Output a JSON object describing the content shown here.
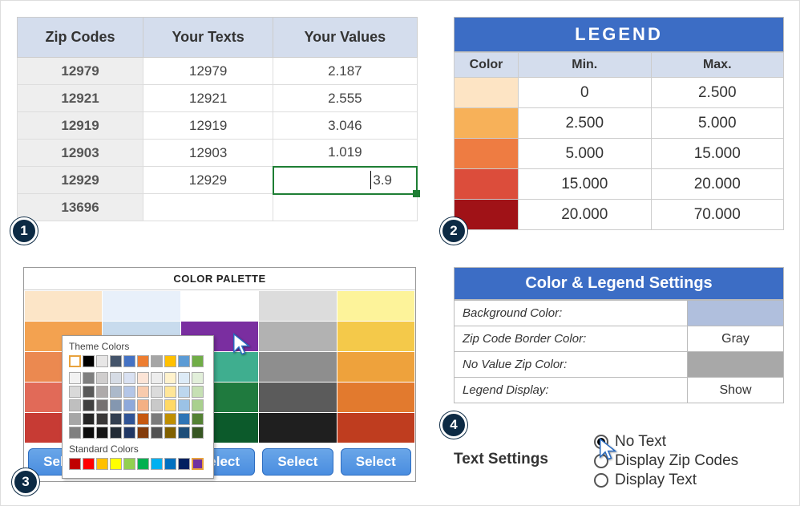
{
  "badges": [
    "1",
    "2",
    "3",
    "4"
  ],
  "dataTable": {
    "headers": [
      "Zip Codes",
      "Your Texts",
      "Your Values"
    ],
    "rows": [
      {
        "zip": "12979",
        "text": "12979",
        "value": "2.187"
      },
      {
        "zip": "12921",
        "text": "12921",
        "value": "2.555"
      },
      {
        "zip": "12919",
        "text": "12919",
        "value": "3.046"
      },
      {
        "zip": "12903",
        "text": "12903",
        "value": "1.019"
      },
      {
        "zip": "12929",
        "text": "12929",
        "value": "3.9",
        "editing": true
      },
      {
        "zip": "13696",
        "text": "",
        "value": ""
      }
    ]
  },
  "legend": {
    "title": "LEGEND",
    "headers": [
      "Color",
      "Min.",
      "Max."
    ],
    "rows": [
      {
        "color": "#fde4c4",
        "min": "0",
        "max": "2.500"
      },
      {
        "color": "#f7b159",
        "min": "2.500",
        "max": "5.000"
      },
      {
        "color": "#ee7c42",
        "min": "5.000",
        "max": "15.000"
      },
      {
        "color": "#dc4d3b",
        "min": "15.000",
        "max": "20.000"
      },
      {
        "color": "#a01217",
        "min": "20.000",
        "max": "70.000"
      }
    ]
  },
  "palette": {
    "title": "COLOR PALETTE",
    "select_label": "Select",
    "columns": [
      [
        "#fce5c7",
        "#f3a250",
        "#eb8950",
        "#e16a58",
        "#c73b34"
      ],
      [
        "#e8f0fa",
        "#c8dbed",
        "#a9c5df",
        "#83a8c8",
        "#4f82b0"
      ],
      [
        "#ffffff",
        "#7a2ea0",
        "#3fae8f",
        "#1f7a3e",
        "#0c5a2b"
      ],
      [
        "#dcdcdc",
        "#b2b2b2",
        "#8e8e8e",
        "#5b5b5b",
        "#1f1f1f"
      ],
      [
        "#fdf39a",
        "#f4c94a",
        "#eea23c",
        "#e27a2e",
        "#bf3d1f"
      ]
    ]
  },
  "picker": {
    "theme_label": "Theme Colors",
    "standard_label": "Standard Colors",
    "theme_top": [
      "#ffffff",
      "#000000",
      "#e7e6e6",
      "#44546a",
      "#4472c4",
      "#ed7d31",
      "#a5a5a5",
      "#ffc000",
      "#5b9bd5",
      "#70ad47"
    ],
    "theme_shades": [
      [
        "#f2f2f2",
        "#7f7f7f",
        "#d0cece",
        "#d6dce5",
        "#d9e1f2",
        "#fce4d6",
        "#ededed",
        "#fff2cc",
        "#ddebf7",
        "#e2efda"
      ],
      [
        "#d9d9d9",
        "#595959",
        "#aeaaaa",
        "#acb9ca",
        "#b4c6e7",
        "#f8cbad",
        "#dbdbdb",
        "#ffe699",
        "#bdd7ee",
        "#c6e0b4"
      ],
      [
        "#bfbfbf",
        "#404040",
        "#757171",
        "#8497b0",
        "#8ea9db",
        "#f4b084",
        "#c9c9c9",
        "#ffd966",
        "#9bc2e6",
        "#a9d08e"
      ],
      [
        "#a6a6a6",
        "#262626",
        "#3a3838",
        "#333f50",
        "#305496",
        "#c65911",
        "#7b7b7b",
        "#bf8f00",
        "#2f75b5",
        "#548235"
      ],
      [
        "#808080",
        "#0d0d0d",
        "#161616",
        "#222b35",
        "#203764",
        "#833c0c",
        "#525252",
        "#806000",
        "#1f4e78",
        "#375623"
      ]
    ],
    "standard": [
      "#c00000",
      "#ff0000",
      "#ffc000",
      "#ffff00",
      "#92d050",
      "#00b050",
      "#00b0f0",
      "#0070c0",
      "#002060",
      "#7030a0"
    ]
  },
  "settings": {
    "title": "Color & Legend Settings",
    "rows": [
      {
        "label": "Background Color:",
        "value": "",
        "bg": "#b0bfdd"
      },
      {
        "label": "Zip Code Border Color:",
        "value": "Gray",
        "bg": "#ffffff"
      },
      {
        "label": "No Value Zip Color:",
        "value": "",
        "bg": "#a8a8a8"
      },
      {
        "label": "Legend Display:",
        "value": "Show",
        "bg": "#ffffff"
      }
    ]
  },
  "textSettings": {
    "label": "Text Settings",
    "options": [
      "No Text",
      "Display Zip Codes",
      "Display Text"
    ],
    "selected": 0
  },
  "accentColors": {
    "editingBorder": "#1e7e34",
    "headerBg": "#3c6dc5",
    "badgeBg": "#0c2a44"
  }
}
